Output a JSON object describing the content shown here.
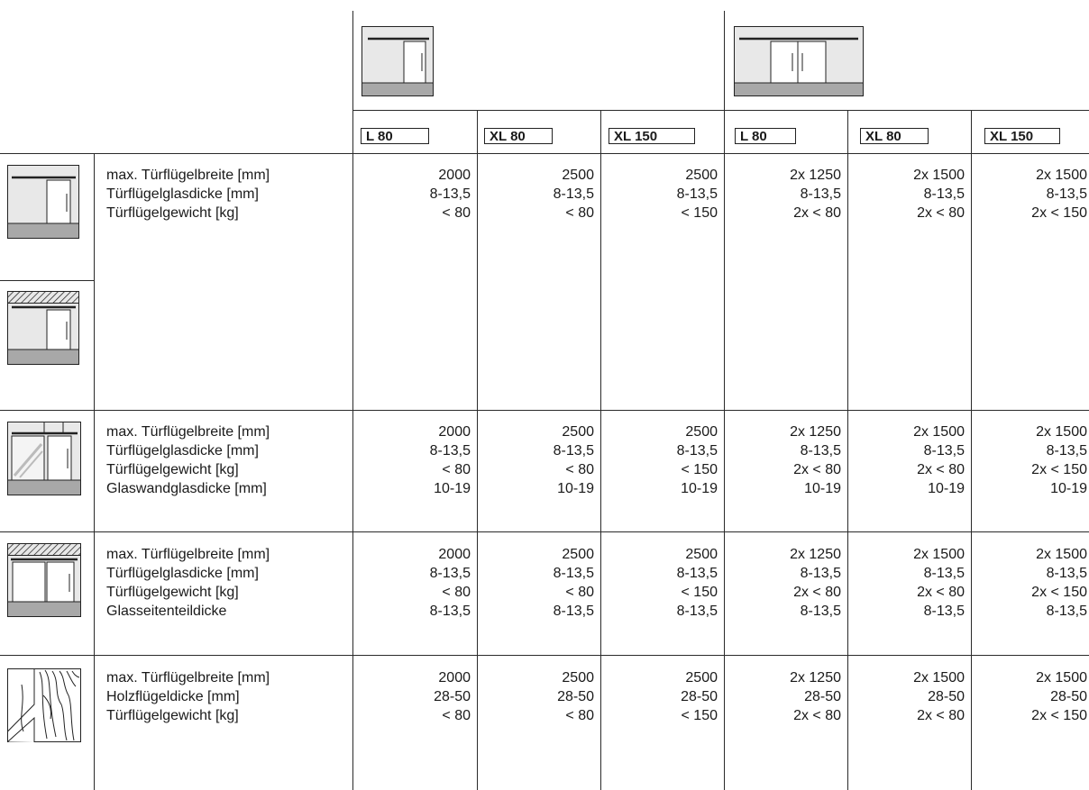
{
  "columns": [
    {
      "model": "L 80"
    },
    {
      "model": "XL 80"
    },
    {
      "model": "XL 150"
    },
    {
      "model": "L 80"
    },
    {
      "model": "XL 80"
    },
    {
      "model": "XL 150"
    }
  ],
  "sections": [
    {
      "labels": [
        "max. Türflügelbreite [mm]",
        "Türflügelglasdicke [mm]",
        "Türflügelgewicht [kg]"
      ],
      "values": [
        [
          "2000",
          "8-13,5",
          "< 80"
        ],
        [
          "2500",
          "8-13,5",
          "< 80"
        ],
        [
          "2500",
          "8-13,5",
          "< 150"
        ],
        [
          "2x 1250",
          "8-13,5",
          "2x < 80"
        ],
        [
          "2x 1500",
          "8-13,5",
          "2x < 80"
        ],
        [
          "2x 1500",
          "8-13,5",
          "2x < 150"
        ]
      ]
    },
    {
      "labels": [
        "max. Türflügelbreite [mm]",
        "Türflügelglasdicke [mm]",
        "Türflügelgewicht [kg]",
        "Glaswandglasdicke [mm]"
      ],
      "values": [
        [
          "2000",
          "8-13,5",
          "< 80",
          "10-19"
        ],
        [
          "2500",
          "8-13,5",
          "< 80",
          "10-19"
        ],
        [
          "2500",
          "8-13,5",
          "< 150",
          "10-19"
        ],
        [
          "2x 1250",
          "8-13,5",
          "2x < 80",
          "10-19"
        ],
        [
          "2x 1500",
          "8-13,5",
          "2x < 80",
          "10-19"
        ],
        [
          "2x 1500",
          "8-13,5",
          "2x < 150",
          "10-19"
        ]
      ]
    },
    {
      "labels": [
        "max. Türflügelbreite [mm]",
        "Türflügelglasdicke [mm]",
        "Türflügelgewicht [kg]",
        "Glasseitenteildicke"
      ],
      "values": [
        [
          "2000",
          "8-13,5",
          "< 80",
          "8-13,5"
        ],
        [
          "2500",
          "8-13,5",
          "< 80",
          "8-13,5"
        ],
        [
          "2500",
          "8-13,5",
          "< 150",
          "8-13,5"
        ],
        [
          "2x 1250",
          "8-13,5",
          "2x < 80",
          "8-13,5"
        ],
        [
          "2x 1500",
          "8-13,5",
          "2x < 80",
          "8-13,5"
        ],
        [
          "2x 1500",
          "8-13,5",
          "2x < 150",
          "8-13,5"
        ]
      ]
    },
    {
      "labels": [
        "max. Türflügelbreite [mm]",
        "Holzflügeldicke [mm]",
        "Türflügelgewicht [kg]"
      ],
      "values": [
        [
          "2000",
          "28-50",
          "< 80"
        ],
        [
          "2500",
          "28-50",
          "< 80"
        ],
        [
          "2500",
          "28-50",
          "< 150"
        ],
        [
          "2x 1250",
          "28-50",
          "2x < 80"
        ],
        [
          "2x 1500",
          "28-50",
          "2x < 80"
        ],
        [
          "2x 1500",
          "28-50",
          "2x < 150"
        ]
      ]
    }
  ],
  "icons": {
    "header_single": "single-sliding-door-icon",
    "header_double": "double-sliding-door-icon",
    "row1": "sliding-door-wall-mount-icon",
    "row1b": "sliding-door-ceiling-mount-icon",
    "row2": "sliding-door-glass-wall-icon",
    "row3": "sliding-door-glass-side-panel-icon",
    "row4": "sliding-door-wooden-leaf-icon"
  }
}
